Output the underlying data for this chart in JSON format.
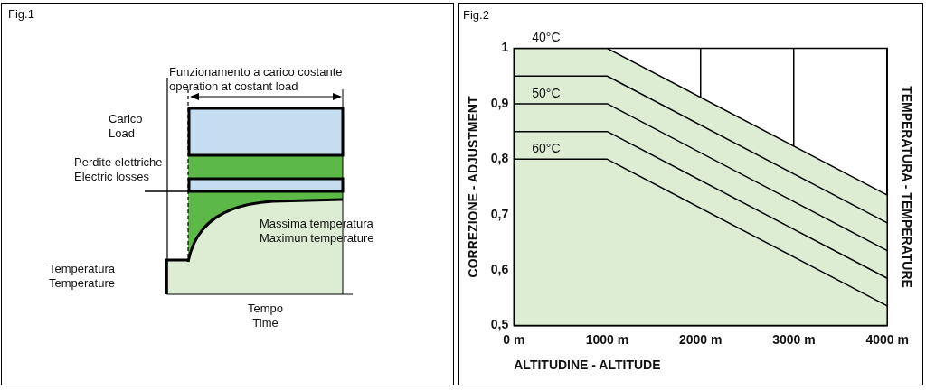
{
  "chart_data": [
    {
      "type": "other",
      "title": "Fig.1",
      "annotations": [
        "Funzionamento a carico costante\noperation at costant load",
        "Carico\nLoad",
        "Perdite elettriche\nElectric losses",
        "Massima temperatura\nMaximun temperature",
        "Temperatura\nTemperature",
        "Tempo\nTime"
      ]
    },
    {
      "type": "line",
      "title": "Fig.2",
      "xlabel": "ALTITUDINE - ALTITUDE",
      "ylabel": "CORREZIONE - ADJUSTMENT",
      "y2label": "TEMPERATURA - TEMPERATURE",
      "x": [
        0,
        1000,
        4000
      ],
      "series": [
        {
          "type": "area",
          "color": "#dcedd4",
          "values": [
            1,
            1,
            0.735
          ]
        },
        {
          "color": "#000000",
          "values": [
            0.95,
            0.95,
            0.685
          ]
        },
        {
          "color": "#000000",
          "values": [
            0.9,
            0.9,
            0.635
          ]
        },
        {
          "color": "#000000",
          "values": [
            0.85,
            0.85,
            0.585
          ]
        },
        {
          "color": "#000000",
          "values": [
            0.8,
            0.8,
            0.535
          ]
        }
      ],
      "xlim": [
        0,
        4000
      ],
      "xticks": [
        {
          "value": 0,
          "label": "0 m"
        },
        {
          "value": 1000,
          "label": "1000 m"
        },
        {
          "value": 2000,
          "label": "2000 m"
        },
        {
          "value": 3000,
          "label": "3000 m"
        },
        {
          "value": 4000,
          "label": "4000 m"
        }
      ],
      "ylim": [
        0.5,
        1
      ],
      "yticks": [
        {
          "value": 0.5,
          "label": "0,5"
        },
        {
          "value": 0.6,
          "label": "0,6"
        },
        {
          "value": 0.7,
          "label": "0,7"
        },
        {
          "value": 0.8,
          "label": "0,8"
        },
        {
          "value": 0.9,
          "label": "0,9"
        },
        {
          "value": 1,
          "label": "1"
        }
      ],
      "grid": "x",
      "legend": false,
      "marker": "none",
      "line_style": "solid",
      "annotations": [
        {
          "text": "40°C",
          "y": 1
        },
        {
          "text": "50°C",
          "y": 0.9
        },
        {
          "text": "60°C",
          "y": 0.8
        }
      ]
    }
  ]
}
